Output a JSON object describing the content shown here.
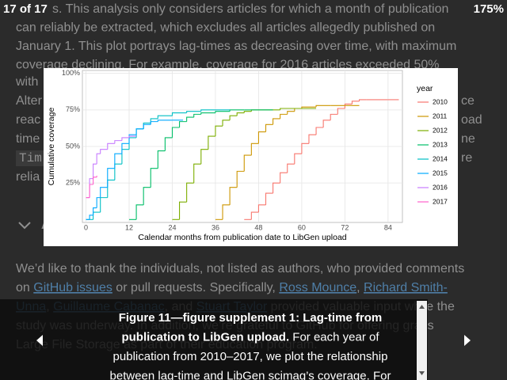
{
  "toolbar": {
    "counter": "17 of 17",
    "zoom": "175%"
  },
  "article": {
    "top_lines": [
      "s. This analysis only considers articles for which a month of publication",
      "can reliably be extracted, which excludes all articles allegedly published on",
      "January 1. This plot portrays lag-times as decreasing over time, with maximum",
      "coverage declining. For example, coverage for 2016 articles exceeded 50%"
    ],
    "left_fragments": [
      "with",
      "Alter",
      "reac",
      "time",
      "Tim",
      "relia"
    ],
    "right_fragments": [
      "ce",
      "oad",
      "ne",
      "re"
    ],
    "heading": "A",
    "acknowledgements": [
      [
        {
          "text": "We’d like to thank the individuals, not listed as authors, who provided comments"
        }
      ],
      [
        {
          "text": "on "
        },
        {
          "text": "GitHub issues",
          "link": true
        },
        {
          "text": " or pull requests. Specifically, "
        },
        {
          "text": "Ross Mounce",
          "link": true
        },
        {
          "text": ", "
        },
        {
          "text": "Richard Smith-",
          "link": true
        }
      ],
      [
        {
          "text": "Unna",
          "link": true
        },
        {
          "text": ", "
        },
        {
          "text": "Guillaume Cabanac",
          "link": true
        },
        {
          "text": ", and "
        },
        {
          "text": "Stuart Taylor",
          "link": true
        },
        {
          "text": " provided valuable input while the"
        }
      ],
      [
        {
          "text": "study was underway. In addition, we’re grateful to GitHub for offering gratis"
        }
      ],
      [
        {
          "text": "Large File Storage as part of their education program."
        }
      ]
    ]
  },
  "figure": {
    "type": "step",
    "x_label": "Calendar months from publication date to LibGen upload",
    "y_label": "Cumulative coverage",
    "legend_title": "year",
    "xlim": [
      -1,
      88
    ],
    "ylim": [
      -2,
      102
    ],
    "xticks": [
      0,
      12,
      24,
      36,
      48,
      60,
      72,
      84
    ],
    "yticks": [
      {
        "value": 25,
        "label": "25%"
      },
      {
        "value": 50,
        "label": "50%"
      },
      {
        "value": 75,
        "label": "75%"
      },
      {
        "value": 100,
        "label": "100%"
      }
    ],
    "grid": true,
    "series": [
      {
        "name": "2010",
        "color": "#F8766D",
        "x": [
          44,
          46,
          48,
          50,
          52,
          54,
          56,
          58,
          60,
          62,
          64,
          66,
          68,
          70,
          72,
          74,
          76,
          78,
          84,
          87
        ],
        "values": [
          0,
          5,
          10,
          18,
          25,
          32,
          38,
          45,
          52,
          58,
          63,
          68,
          72,
          76,
          79,
          81,
          82,
          82,
          82,
          82
        ]
      },
      {
        "name": "2011",
        "color": "#CD9600",
        "x": [
          36,
          38,
          40,
          42,
          44,
          46,
          48,
          50,
          52,
          54,
          56,
          58,
          60,
          64,
          68,
          72,
          76
        ],
        "values": [
          0,
          10,
          22,
          33,
          44,
          52,
          60,
          65,
          69,
          72,
          74,
          76,
          77,
          78,
          78,
          78,
          78
        ]
      },
      {
        "name": "2012",
        "color": "#7CAE00",
        "x": [
          24,
          26,
          28,
          30,
          32,
          34,
          36,
          38,
          40,
          42,
          44,
          46,
          48,
          54,
          60,
          64
        ],
        "values": [
          0,
          12,
          25,
          38,
          48,
          57,
          64,
          68,
          71,
          73,
          74,
          75,
          75,
          76,
          76,
          76
        ]
      },
      {
        "name": "2013",
        "color": "#00BE67",
        "x": [
          12,
          14,
          16,
          18,
          20,
          22,
          24,
          26,
          28,
          30,
          32,
          36,
          40,
          44,
          48,
          52
        ],
        "values": [
          0,
          10,
          22,
          35,
          47,
          56,
          63,
          67,
          70,
          72,
          73,
          74,
          75,
          75,
          75,
          75
        ]
      },
      {
        "name": "2014",
        "color": "#00BFC4",
        "x": [
          0,
          2,
          4,
          6,
          8,
          10,
          12,
          14,
          16,
          18,
          20,
          24,
          28,
          32,
          36,
          40
        ],
        "values": [
          0,
          5,
          15,
          27,
          38,
          48,
          56,
          62,
          66,
          69,
          71,
          73,
          74,
          75,
          75,
          75
        ]
      },
      {
        "name": "2015",
        "color": "#00A9FF",
        "x": [
          0,
          1,
          2,
          3,
          4,
          6,
          8,
          10,
          12,
          14,
          16,
          18,
          20,
          24,
          27
        ],
        "values": [
          0,
          3,
          8,
          15,
          22,
          35,
          45,
          52,
          58,
          62,
          65,
          67,
          68,
          68,
          68
        ]
      },
      {
        "name": "2016",
        "color": "#C77CFF",
        "x": [
          0,
          1,
          2,
          3,
          4,
          6,
          8,
          10,
          12,
          14
        ],
        "values": [
          15,
          28,
          38,
          45,
          48,
          52,
          54,
          56,
          57,
          57
        ]
      },
      {
        "name": "2017",
        "color": "#FF61CC",
        "x": [
          0,
          1,
          2,
          3
        ],
        "values": [
          15,
          24,
          29,
          30
        ]
      }
    ]
  },
  "caption": {
    "lines": [
      [
        {
          "text": "Figure 11—figure supplement 1:  Lag-time from",
          "bold": true
        }
      ],
      [
        {
          "text": "publication to LibGen upload.",
          "bold": true
        },
        {
          "text": " For each year of"
        }
      ],
      [
        {
          "text": "publication from 2010–2017, we plot the relationship"
        }
      ],
      [
        {
          "text": "between lag-time and LibGen scimag’s coverage. For"
        }
      ]
    ]
  }
}
